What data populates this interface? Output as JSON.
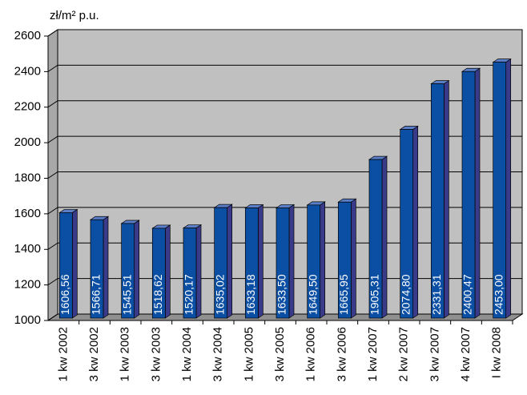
{
  "chart_data": {
    "type": "bar",
    "y_axis_label": "zł/m² p.u.",
    "categories": [
      "1 kw 2002",
      "3 kw 2002",
      "1 kw 2003",
      "3 kw 2003",
      "1 kw 2004",
      "3 kw 2004",
      "1 kw 2005",
      "3 kw 2005",
      "1 kw 2006",
      "3 kw 2006",
      "1 kw 2007",
      "2 kw 2007",
      "3 kw 2007",
      "4 kw 2007",
      "I kw 2008"
    ],
    "values": [
      1606.56,
      1566.71,
      1545.51,
      1518.62,
      1520.17,
      1635.02,
      1633.18,
      1633.5,
      1649.5,
      1665.95,
      1905.31,
      2074.8,
      2331.31,
      2400.47,
      2453.0
    ],
    "value_labels": [
      "1606,56",
      "1566,71",
      "1545,51",
      "1518,62",
      "1520,17",
      "1635,02",
      "1633,18",
      "1633,50",
      "1649,50",
      "1665,95",
      "1905,31",
      "2074,80",
      "2331,31",
      "2400,47",
      "2453,00"
    ],
    "color": "#0a4fa3",
    "ylim": [
      1000,
      2600
    ],
    "yticks": [
      1000,
      1200,
      1400,
      1600,
      1800,
      2000,
      2200,
      2400,
      2600
    ],
    "grid": true
  }
}
